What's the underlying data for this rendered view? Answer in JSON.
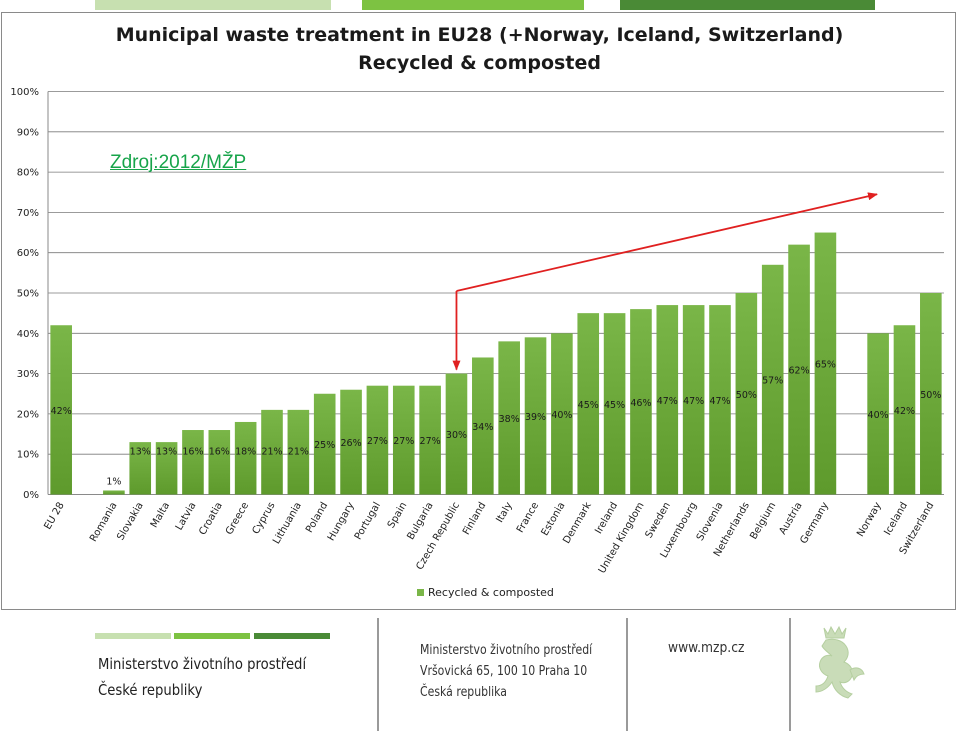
{
  "colors": {
    "bar_top": "#7ab648",
    "bar_bottom": "#5e9a2c",
    "arrow": "#e02020",
    "source_note": "#17a44a",
    "green_light": "#c7e0b0",
    "green_mid": "#7dc242",
    "green_dark": "#4a8a36"
  },
  "header": {
    "title_line1": "Municipal waste treatment in EU28 (+Norway, Iceland, Switzerland)",
    "title_line2": "Recycled & composted"
  },
  "annotation": {
    "source_text": "Zdroj:2012/MŽP"
  },
  "legend": {
    "label": "Recycled & composted"
  },
  "footer": {
    "ministry_line1": "Ministerstvo životního prostředí",
    "ministry_line2": "České republiky",
    "address_line1": "Ministerstvo životního prostředí",
    "address_line2": "Vršovická 65, 100 10  Praha 10",
    "address_line3": "Česká republika",
    "website": "www.mzp.cz",
    "emblem_icon": "heraldic-lion-icon"
  },
  "chart_data": {
    "type": "bar",
    "ylim": [
      0,
      100
    ],
    "yticks": [
      "0%",
      "10%",
      "20%",
      "30%",
      "40%",
      "50%",
      "60%",
      "70%",
      "80%",
      "90%",
      "100%"
    ],
    "grid": true,
    "legend_position": "bottom",
    "annotation": "arrow from Czech Republic bar pointing up-right",
    "groups": [
      {
        "categories": [
          "EU 28"
        ],
        "values": [
          42
        ],
        "labels": [
          "42%"
        ]
      },
      {
        "categories": [
          "Romania",
          "Slovakia",
          "Malta",
          "Latvia",
          "Croatia",
          "Greece",
          "Cyprus",
          "Lithuania",
          "Poland",
          "Hungary",
          "Portugal",
          "Spain",
          "Bulgaria",
          "Czech Republic",
          "Finland",
          "Italy",
          "France",
          "Estonia",
          "Denmark",
          "Ireland",
          "United Kingdom",
          "Sweden",
          "Luxembourg",
          "Slovenia",
          "Netherlands",
          "Belgium",
          "Austria",
          "Germany"
        ],
        "values": [
          1,
          13,
          13,
          16,
          16,
          18,
          21,
          21,
          25,
          26,
          27,
          27,
          27,
          30,
          34,
          38,
          39,
          40,
          45,
          45,
          46,
          47,
          47,
          47,
          50,
          57,
          62,
          65
        ],
        "labels": [
          "1%",
          "13%",
          "13%",
          "16%",
          "16%",
          "18%",
          "21%",
          "21%",
          "25%",
          "26%",
          "27%",
          "27%",
          "27%",
          "30%",
          "34%",
          "38%",
          "39%",
          "40%",
          "45%",
          "45%",
          "46%",
          "47%",
          "47%",
          "47%",
          "50%",
          "57%",
          "62%",
          "65%"
        ]
      },
      {
        "categories": [
          "Norway",
          "Iceland",
          "Switzerland"
        ],
        "values": [
          40,
          42,
          50
        ],
        "labels": [
          "40%",
          "42%",
          "50%"
        ]
      }
    ]
  }
}
